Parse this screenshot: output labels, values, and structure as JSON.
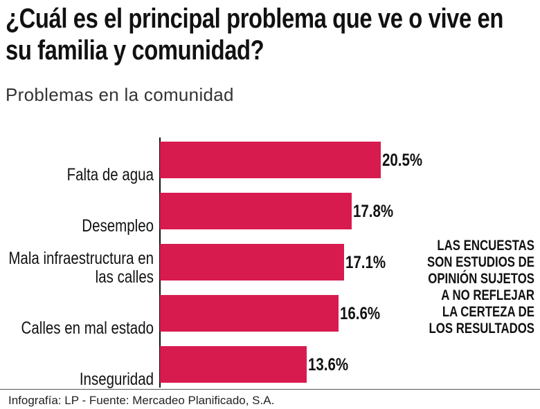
{
  "chart_data": {
    "type": "bar",
    "orientation": "horizontal",
    "title": "¿Cuál es el principal problema que ve o vive en su familia y comunidad?",
    "subtitle": "Problemas en la comunidad",
    "categories": [
      "Falta de agua",
      "Desempleo",
      "Mala infraestructura en las calles",
      "Calles en mal estado",
      "Inseguridad"
    ],
    "values": [
      20.5,
      17.8,
      17.1,
      16.6,
      13.6
    ],
    "value_labels": [
      "20.5%",
      "17.8%",
      "17.1%",
      "16.6%",
      "13.6%"
    ],
    "color": "#d81b4f",
    "note": "LAS ENCUESTAS SON ESTUDIOS DE OPINIÓN SUJETOS A NO REFLEJAR LA CERTEZA DE LOS RESULTADOS",
    "source": "Infografía: LP - Fuente: Mercadeo Planificado, S.A."
  }
}
